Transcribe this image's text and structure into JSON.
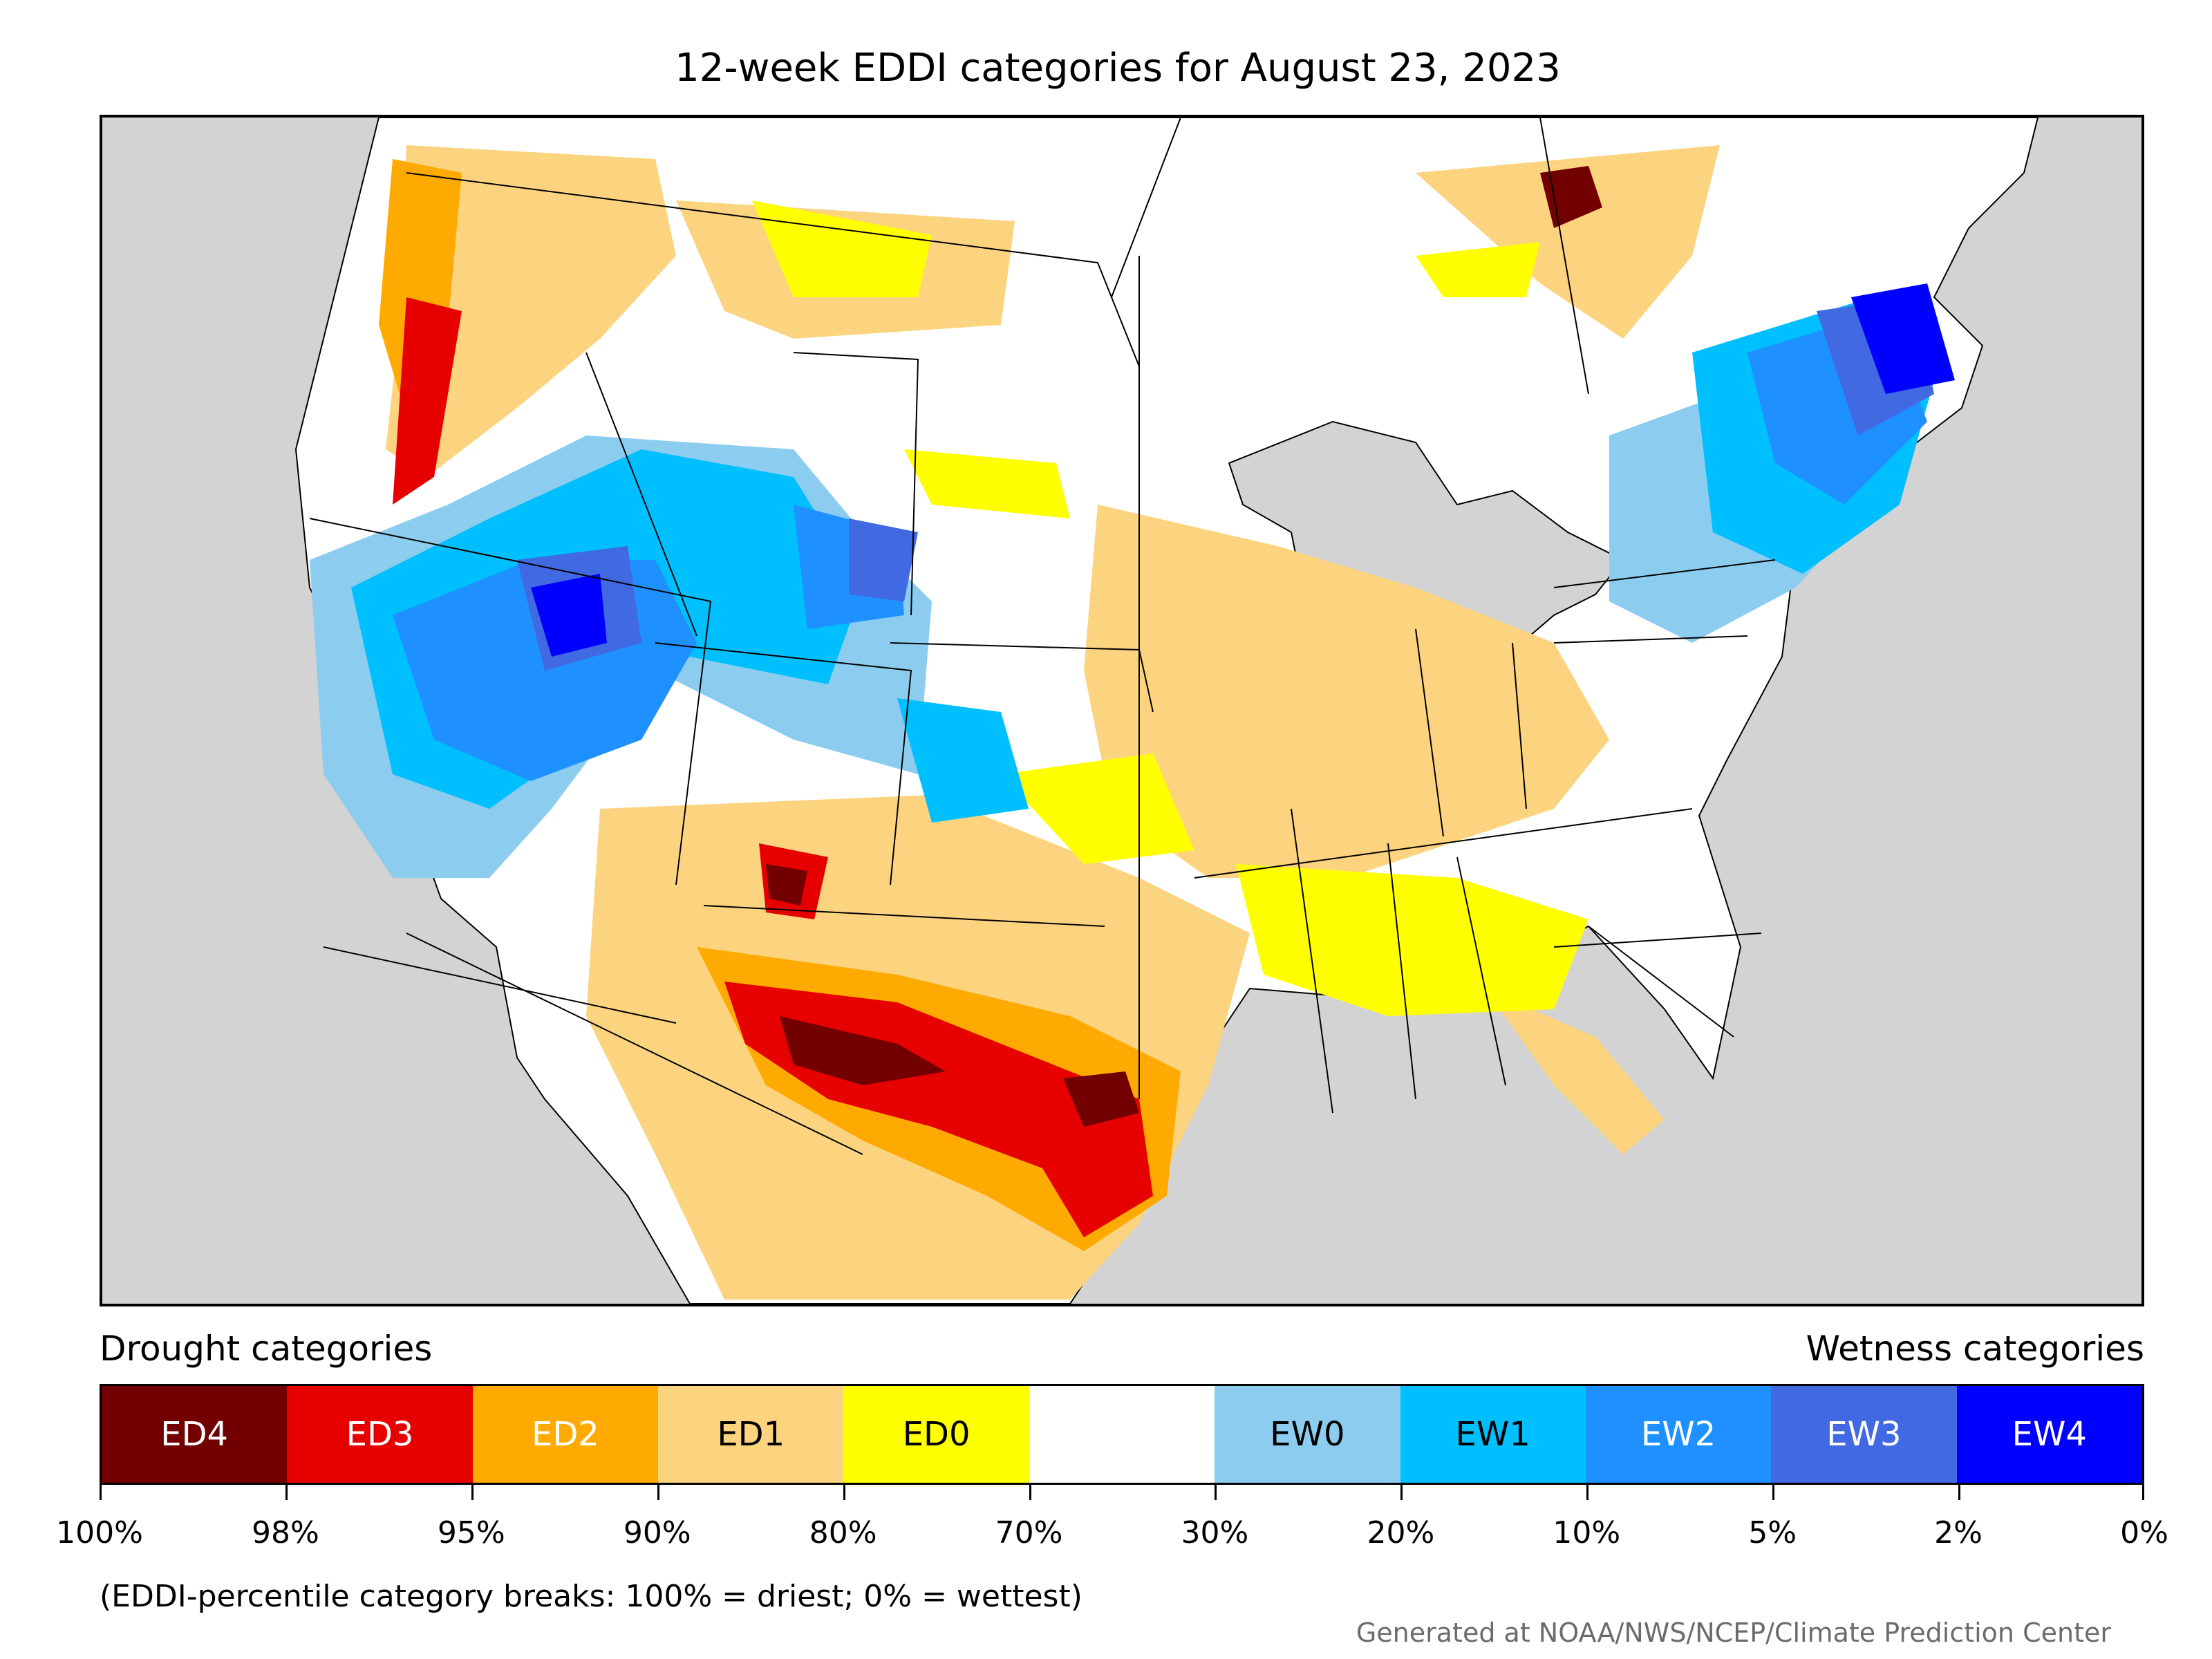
{
  "title": "12-week EDDI categories for August 23, 2023",
  "legend": {
    "drought_label": "Drought categories",
    "wetness_label": "Wetness categories",
    "categories": [
      {
        "label": "ED4",
        "color": "#730000",
        "text_color": "#ffffff"
      },
      {
        "label": "ED3",
        "color": "#e60000",
        "text_color": "#ffffff"
      },
      {
        "label": "ED2",
        "color": "#ffaa00",
        "text_color": "#ffffff"
      },
      {
        "label": "ED1",
        "color": "#fcd37f",
        "text_color": "#000000"
      },
      {
        "label": "ED0",
        "color": "#ffff00",
        "text_color": "#000000"
      },
      {
        "label": "",
        "color": "#ffffff",
        "text_color": "#000000"
      },
      {
        "label": "EW0",
        "color": "#8ccdef",
        "text_color": "#000000"
      },
      {
        "label": "EW1",
        "color": "#00bfff",
        "text_color": "#000000"
      },
      {
        "label": "EW2",
        "color": "#1e90ff",
        "text_color": "#ffffff"
      },
      {
        "label": "EW3",
        "color": "#4169e1",
        "text_color": "#ffffff"
      },
      {
        "label": "EW4",
        "color": "#0000ff",
        "text_color": "#ffffff"
      }
    ],
    "ticks": [
      "100%",
      "98%",
      "95%",
      "90%",
      "80%",
      "70%",
      "30%",
      "20%",
      "10%",
      "5%",
      "2%",
      "0%"
    ]
  },
  "note": "(EDDI-percentile category breaks: 100% = driest; 0% = wettest)",
  "credit": "Generated at NOAA/NWS/NCEP/Climate Prediction Center",
  "map": {
    "background_color": "#d3d3d3",
    "land_color": "#ffffff"
  }
}
